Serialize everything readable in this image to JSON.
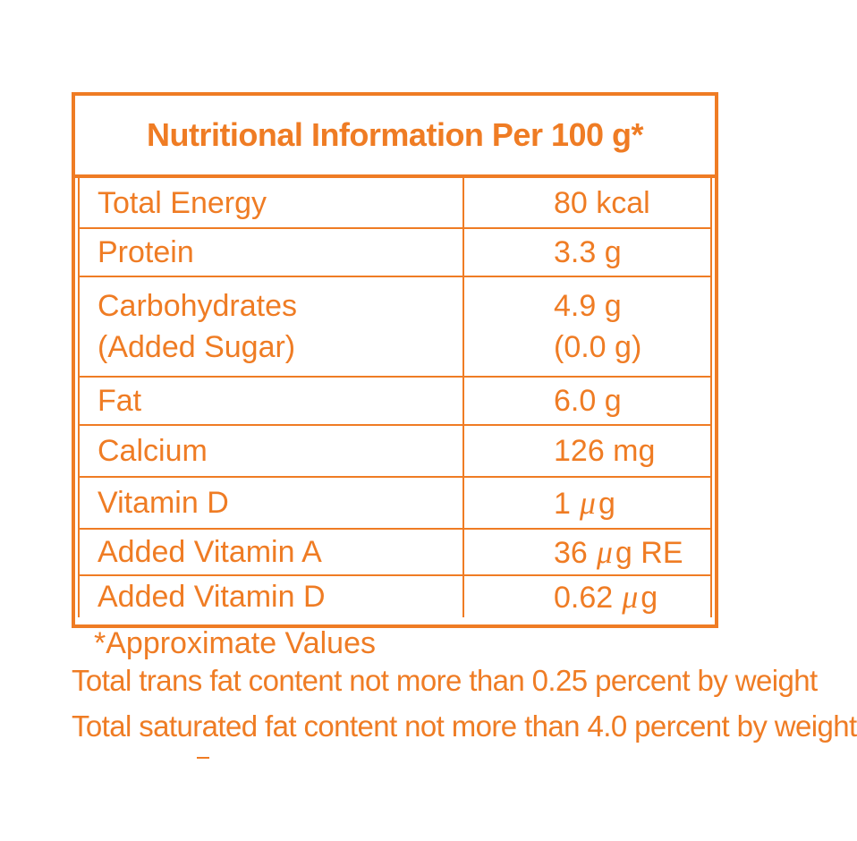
{
  "panel": {
    "title": "Nutritional Information Per 100 g*",
    "rows": [
      {
        "name": [
          "Total Energy"
        ],
        "value": [
          "80 kcal"
        ]
      },
      {
        "name": [
          "Protein"
        ],
        "value": [
          "3.3 g"
        ]
      },
      {
        "name": [
          "Carbohydrates",
          "(Added Sugar)"
        ],
        "value": [
          "4.9 g",
          "(0.0 g)"
        ]
      },
      {
        "name": [
          "Fat"
        ],
        "value": [
          "6.0 g"
        ]
      },
      {
        "name": [
          "Calcium"
        ],
        "value": [
          "126 mg"
        ]
      },
      {
        "name": [
          "Vitamin D"
        ],
        "value": [
          "1",
          "μ",
          "g"
        ]
      },
      {
        "name": [
          "Added Vitamin A"
        ],
        "value": [
          "36",
          "μ",
          "g RE"
        ]
      },
      {
        "name": [
          "Added Vitamin D"
        ],
        "value": [
          "0.62",
          "μ",
          "g"
        ]
      }
    ]
  },
  "notes": {
    "approx": "*Approximate Values",
    "trans_fat": "Total trans fat content not more than 0.25 percent by weight",
    "saturated_fat": "Total saturated fat content not more than 4.0 percent by weight"
  },
  "colors": {
    "accent": "#ef7c24",
    "background": "#ffffff"
  }
}
